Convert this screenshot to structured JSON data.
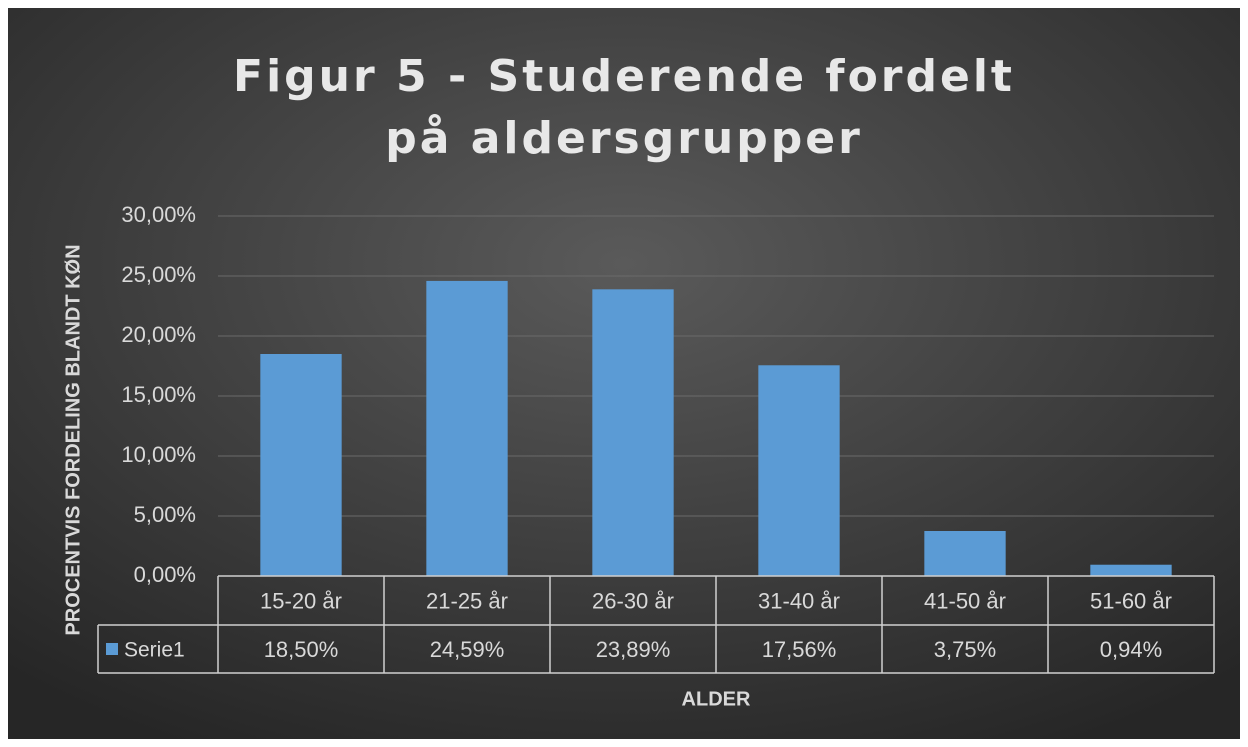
{
  "chart_data": {
    "type": "bar",
    "title": "Figur 5 - Studerende fordelt på aldersgrupper",
    "x_label": "ALDER",
    "y_label": "PROCENTVIS FORDELING BLANDT KØN",
    "categories": [
      "15-20 år",
      "21-25 år",
      "26-30 år",
      "31-40 år",
      "41-50 år",
      "51-60 år"
    ],
    "series": [
      {
        "name": "Serie1",
        "color": "#5b9bd5",
        "values": [
          18.5,
          24.59,
          23.89,
          17.56,
          3.75,
          0.94
        ],
        "value_labels": [
          "18,50%",
          "24,59%",
          "23,89%",
          "17,56%",
          "3,75%",
          "0,94%"
        ]
      }
    ],
    "ylim": [
      0,
      30
    ],
    "yticks": [
      {
        "value": 0,
        "label": "0,00%"
      },
      {
        "value": 5,
        "label": "5,00%"
      },
      {
        "value": 10,
        "label": "10,00%"
      },
      {
        "value": 15,
        "label": "15,00%"
      },
      {
        "value": 20,
        "label": "20,00%"
      },
      {
        "value": 25,
        "label": "25,00%"
      },
      {
        "value": 30,
        "label": "30,00%"
      }
    ],
    "grid": true
  }
}
